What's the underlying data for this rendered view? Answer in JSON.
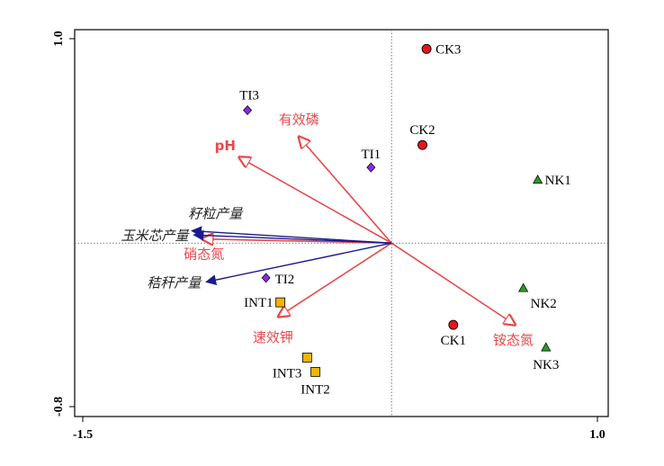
{
  "chart_data": {
    "type": "scatter",
    "subtype": "rda-biplot",
    "title": "",
    "xlabel": "",
    "ylabel": "",
    "xlim": [
      -1.5,
      1.0
    ],
    "ylim": [
      -0.8,
      1.0
    ],
    "xticks": [
      {
        "value": -1.5,
        "label": "-1.5"
      },
      {
        "value": 1.0,
        "label": "1.0"
      }
    ],
    "yticks": [
      {
        "value": 1.0,
        "label": "1.0"
      },
      {
        "value": -0.8,
        "label": "-0.8"
      }
    ],
    "grid": false,
    "zero_lines": "dotted",
    "points": [
      {
        "label": "CK3",
        "group": "CK",
        "x": 0.17,
        "y": 0.95
      },
      {
        "label": "CK2",
        "group": "CK",
        "x": 0.15,
        "y": 0.48
      },
      {
        "label": "CK1",
        "group": "CK",
        "x": 0.3,
        "y": -0.4
      },
      {
        "label": "NK1",
        "group": "NK",
        "x": 0.71,
        "y": 0.31
      },
      {
        "label": "NK2",
        "group": "NK",
        "x": 0.64,
        "y": -0.22
      },
      {
        "label": "NK3",
        "group": "NK",
        "x": 0.75,
        "y": -0.51
      },
      {
        "label": "TI3",
        "group": "TI",
        "x": -0.7,
        "y": 0.65
      },
      {
        "label": "TI1",
        "group": "TI",
        "x": -0.1,
        "y": 0.37
      },
      {
        "label": "TI2",
        "group": "TI",
        "x": -0.61,
        "y": -0.17
      },
      {
        "label": "INT1",
        "group": "INT",
        "x": -0.54,
        "y": -0.29
      },
      {
        "label": "INT3",
        "group": "INT",
        "x": -0.41,
        "y": -0.56
      },
      {
        "label": "INT2",
        "group": "INT",
        "x": -0.37,
        "y": -0.63
      }
    ],
    "groups": {
      "CK": {
        "marker": "circle",
        "color": "#e8141c"
      },
      "NK": {
        "marker": "triangle",
        "color": "#2a9a2a"
      },
      "TI": {
        "marker": "diamond",
        "color": "#8a2be2"
      },
      "INT": {
        "marker": "square",
        "color": "#f5b300"
      }
    },
    "vectors": [
      {
        "label": "有效磷",
        "x": -0.45,
        "y": 0.52,
        "kind": "environment",
        "bold": false,
        "italic": false
      },
      {
        "label": "pH",
        "x": -0.74,
        "y": 0.42,
        "kind": "environment",
        "bold": true,
        "italic": false
      },
      {
        "label": "硝态氮",
        "x": -0.92,
        "y": 0.02,
        "kind": "environment",
        "bold": false,
        "italic": false
      },
      {
        "label": "速效钾",
        "x": -0.55,
        "y": -0.36,
        "kind": "environment",
        "bold": false,
        "italic": false
      },
      {
        "label": "铵态氮",
        "x": 0.6,
        "y": -0.4,
        "kind": "environment",
        "bold": false,
        "italic": false
      },
      {
        "label": "籽粒产量",
        "x": -0.97,
        "y": 0.06,
        "kind": "response",
        "bold": false,
        "italic": true
      },
      {
        "label": "玉米芯产量",
        "x": -0.96,
        "y": 0.04,
        "kind": "response",
        "bold": false,
        "italic": true
      },
      {
        "label": "秸秆产量",
        "x": -0.9,
        "y": -0.19,
        "kind": "response",
        "bold": false,
        "italic": true
      }
    ],
    "colors": {
      "environment": "#e8494b",
      "response": "#1a1a8c"
    }
  }
}
